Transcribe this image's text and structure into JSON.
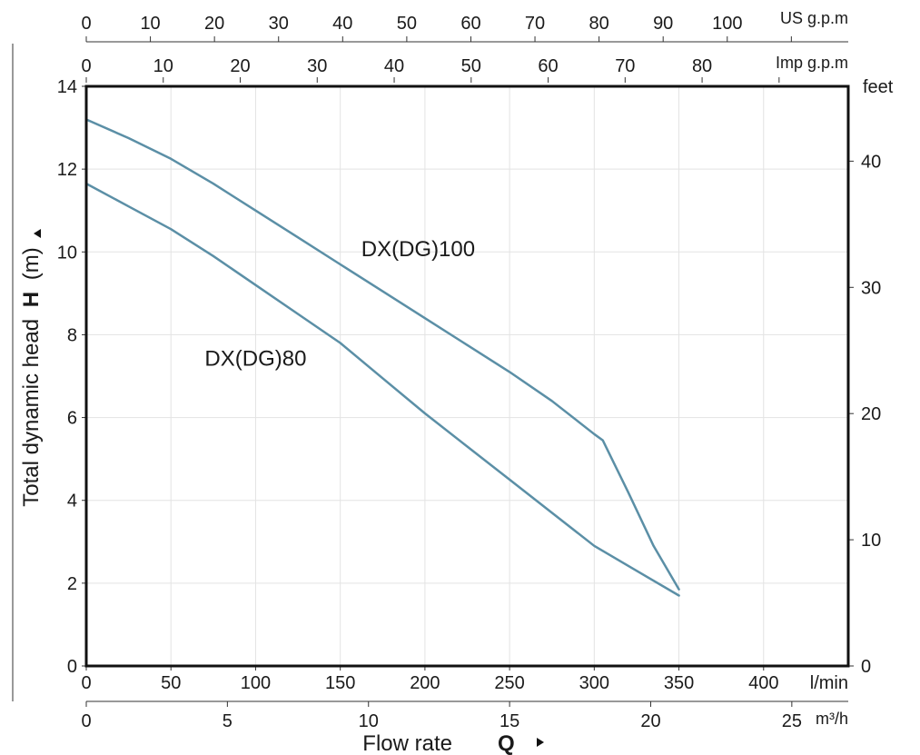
{
  "chart_data": {
    "type": "line",
    "title": "",
    "xlabel": "Flow rate",
    "xlabel_symbol": "Q",
    "ylabel": "Total dynamic head",
    "ylabel_symbol": "H",
    "ylabel_unit": "(m)",
    "x_unit": "l/min",
    "xlim": [
      0,
      450
    ],
    "ylim": [
      0,
      14
    ],
    "x_ticks": [
      0,
      50,
      100,
      150,
      200,
      250,
      300,
      350,
      400
    ],
    "y_ticks": [
      0,
      2,
      4,
      6,
      8,
      10,
      12,
      14
    ],
    "grid": true,
    "secondary_axes": {
      "us_gpm": {
        "unit": "US g.p.m",
        "ticks": [
          0,
          10,
          20,
          30,
          40,
          50,
          60,
          70,
          80,
          90,
          100
        ]
      },
      "imp_gpm": {
        "unit": "Imp g.p.m",
        "ticks": [
          0,
          10,
          20,
          30,
          40,
          50,
          60,
          70,
          80
        ]
      },
      "m3h": {
        "unit": "m³/h",
        "ticks": [
          0,
          5,
          10,
          15,
          20,
          25
        ]
      },
      "feet": {
        "unit": "feet",
        "ticks": [
          0,
          10,
          20,
          30,
          40
        ]
      }
    },
    "series": [
      {
        "name": "DX(DG)100",
        "color": "#5b8fa6",
        "x": [
          0,
          25,
          50,
          75,
          100,
          125,
          150,
          175,
          200,
          225,
          250,
          275,
          300,
          305,
          320,
          335,
          350
        ],
        "y": [
          13.2,
          12.75,
          12.25,
          11.65,
          11.0,
          10.35,
          9.7,
          9.05,
          8.4,
          7.75,
          7.1,
          6.4,
          5.6,
          5.45,
          4.2,
          2.9,
          1.85
        ]
      },
      {
        "name": "DX(DG)80",
        "color": "#5b8fa6",
        "x": [
          0,
          25,
          50,
          75,
          100,
          125,
          150,
          175,
          200,
          225,
          250,
          275,
          300,
          325,
          350
        ],
        "y": [
          11.65,
          11.1,
          10.55,
          9.9,
          9.2,
          8.5,
          7.8,
          6.95,
          6.1,
          5.3,
          4.5,
          3.7,
          2.9,
          2.3,
          1.7
        ]
      }
    ],
    "annotations": [
      {
        "text": "DX(DG)100",
        "at": [
          196,
          9.9
        ]
      },
      {
        "text": "DX(DG)80",
        "at": [
          100,
          7.25
        ]
      }
    ]
  }
}
